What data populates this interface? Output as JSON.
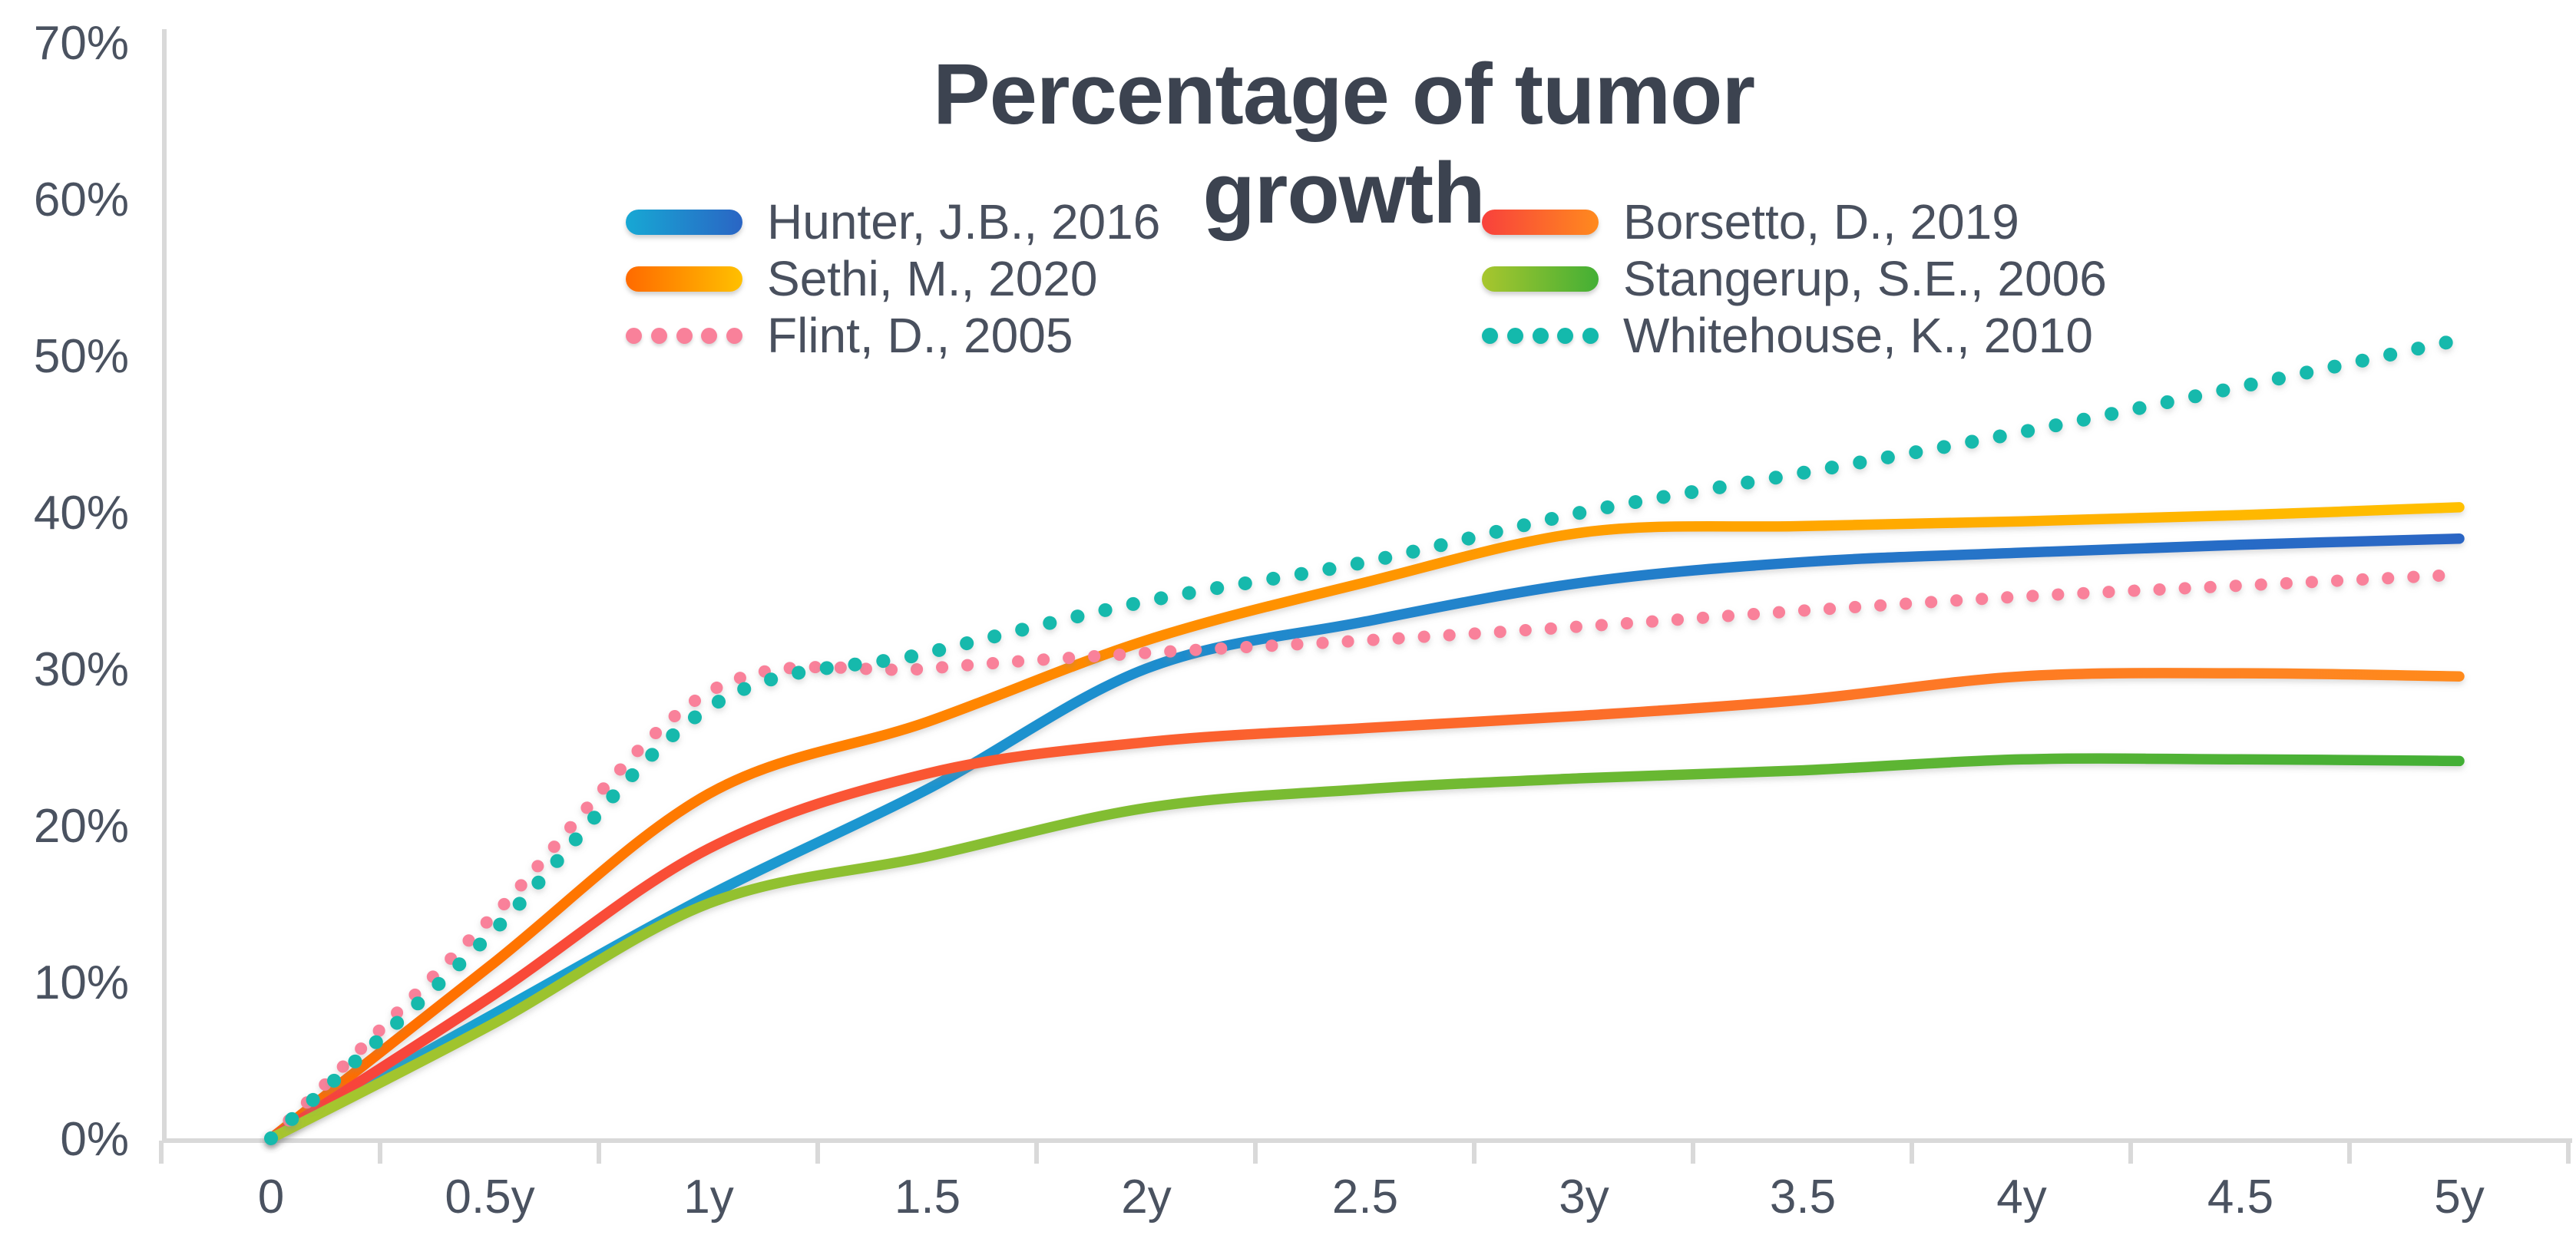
{
  "chart_data": {
    "type": "line",
    "title": "Percentage of tumor growth",
    "xlabel": "",
    "ylabel": "",
    "x": [
      0,
      0.5,
      1,
      1.5,
      2,
      2.5,
      3,
      3.5,
      4,
      4.5,
      5
    ],
    "x_tick_labels": [
      "0",
      "0.5y",
      "1y",
      "1.5",
      "2y",
      "2.5",
      "3y",
      "3.5",
      "4y",
      "4.5",
      "5y"
    ],
    "y_tick_labels": [
      "0%",
      "10%",
      "20%",
      "30%",
      "40%",
      "50%",
      "60%",
      "70%"
    ],
    "ylim": [
      0,
      70
    ],
    "grid": false,
    "legend_position": "top-inside-two-columns",
    "series": [
      {
        "name": "Hunter, J.B., 2016",
        "style": "solid",
        "color_start": "#17a8d4",
        "color_end": "#2a65c4",
        "values": [
          0,
          7.8,
          15.5,
          22.3,
          30.0,
          33.0,
          35.5,
          36.8,
          37.4,
          37.9,
          38.3
        ]
      },
      {
        "name": "Borsetto, D., 2019",
        "style": "solid",
        "color_start": "#f8413c",
        "color_end": "#ff8a1e",
        "values": [
          0,
          9.0,
          18.5,
          23.3,
          25.3,
          26.2,
          27.0,
          28.0,
          29.5,
          29.7,
          29.5
        ]
      },
      {
        "name": "Sethi, M., 2020",
        "style": "solid",
        "color_start": "#ff6a00",
        "color_end": "#ffc000",
        "values": [
          0,
          11.0,
          22.0,
          26.6,
          31.8,
          35.5,
          38.7,
          39.1,
          39.4,
          39.8,
          40.3
        ]
      },
      {
        "name": "Stangerup, S.E., 2006",
        "style": "solid",
        "color_start": "#a8c62e",
        "color_end": "#43af35",
        "values": [
          0,
          7.2,
          15.0,
          18.0,
          21.1,
          22.3,
          23.0,
          23.5,
          24.2,
          24.2,
          24.1
        ]
      },
      {
        "name": "Flint, D., 2005",
        "style": "dotted",
        "color_start": "#f9819a",
        "color_end": "#f9819a",
        "values": [
          0,
          14.0,
          28.5,
          30.0,
          31.0,
          31.8,
          32.7,
          33.7,
          34.6,
          35.3,
          36.0
        ]
      },
      {
        "name": "Whitehouse, K., 2010",
        "style": "dotted",
        "color_start": "#14b9ac",
        "color_end": "#14b9ac",
        "values": [
          0,
          13.0,
          27.5,
          31.0,
          34.3,
          36.8,
          40.0,
          42.5,
          45.1,
          48.0,
          51.0
        ]
      }
    ],
    "colors": {
      "axis_line": "#d9d9d9",
      "tick_label": "#4a5260",
      "title_text": "#3c4350"
    }
  }
}
